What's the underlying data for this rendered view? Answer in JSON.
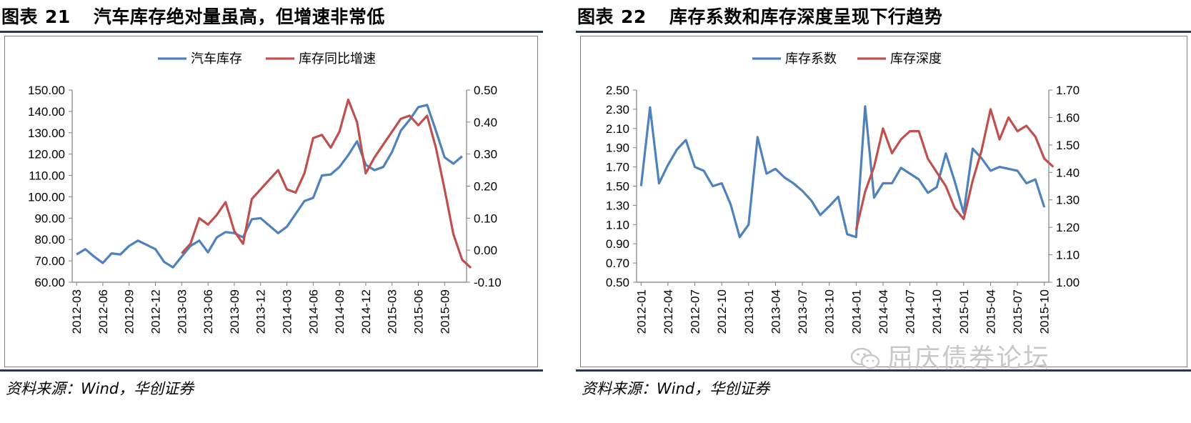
{
  "left_panel": {
    "title_prefix": "图表",
    "title_number": "21",
    "title_text": "汽车库存绝对量虽高，但增速非常低",
    "source": "资料来源：Wind，华创证券"
  },
  "right_panel": {
    "title_prefix": "图表",
    "title_number": "22",
    "title_text": "库存系数和库存深度呈现下行趋势",
    "source": "资料来源：Wind，华创证券"
  },
  "watermark": {
    "text": "屈庆债券论坛",
    "icon": "wechat-icon"
  },
  "colors": {
    "blue": "#4f81bd",
    "red": "#c0504d",
    "rule": "#1f3864"
  },
  "chart_data": [
    {
      "type": "line",
      "legend_position": "top-center",
      "grid": false,
      "x_ticks": [
        "2012-03",
        "2012-06",
        "2012-09",
        "2012-12",
        "2013-03",
        "2013-06",
        "2013-09",
        "2013-12",
        "2014-03",
        "2014-06",
        "2014-09",
        "2014-12",
        "2015-03",
        "2015-06",
        "2015-09"
      ],
      "y_left": {
        "min": 60,
        "max": 150,
        "step": 10,
        "tick_labels": [
          "60.00",
          "70.00",
          "80.00",
          "90.00",
          "100.00",
          "110.00",
          "120.00",
          "130.00",
          "140.00",
          "150.00"
        ]
      },
      "y_right": {
        "min": -0.1,
        "max": 0.5,
        "step": 0.1,
        "tick_labels": [
          "-0.10",
          "0.00",
          "0.10",
          "0.20",
          "0.30",
          "0.40",
          "0.50"
        ]
      },
      "series": [
        {
          "name": "汽车库存",
          "color": "#4f81bd",
          "axis": "left",
          "start_index": 0,
          "values": [
            73,
            75.5,
            72,
            69,
            73.5,
            73,
            77,
            79.5,
            77.5,
            75.5,
            69.5,
            67,
            72,
            77,
            79.5,
            74,
            81,
            83.5,
            83,
            81,
            89.5,
            90,
            86.5,
            83,
            86,
            92,
            98,
            99.5,
            110,
            110.5,
            114,
            119.5,
            126,
            115,
            112.5,
            114,
            121,
            131,
            136,
            142,
            143,
            131,
            118.5,
            115.5,
            119
          ]
        },
        {
          "name": "库存同比增速",
          "color": "#c0504d",
          "axis": "right",
          "start_index": 12,
          "values": [
            -0.01,
            0.02,
            0.1,
            0.08,
            0.11,
            0.15,
            0.06,
            0.02,
            0.16,
            0.19,
            0.22,
            0.25,
            0.19,
            0.18,
            0.24,
            0.35,
            0.36,
            0.32,
            0.37,
            0.47,
            0.4,
            0.24,
            0.29,
            0.33,
            0.37,
            0.41,
            0.42,
            0.39,
            0.42,
            0.32,
            0.19,
            0.05,
            -0.03,
            -0.055
          ]
        }
      ]
    },
    {
      "type": "line",
      "legend_position": "top-center",
      "grid": false,
      "x_ticks": [
        "2012-01",
        "2012-04",
        "2012-07",
        "2012-10",
        "2013-01",
        "2013-04",
        "2013-07",
        "2013-10",
        "2014-01",
        "2014-04",
        "2014-07",
        "2014-10",
        "2015-01",
        "2015-04",
        "2015-07",
        "2015-10"
      ],
      "y_left": {
        "min": 0.5,
        "max": 2.5,
        "step": 0.2,
        "tick_labels": [
          "0.50",
          "0.70",
          "0.90",
          "1.10",
          "1.30",
          "1.50",
          "1.70",
          "1.90",
          "2.10",
          "2.30",
          "2.50"
        ]
      },
      "y_right": {
        "min": 1.0,
        "max": 1.7,
        "step": 0.1,
        "tick_labels": [
          "1.00",
          "1.10",
          "1.20",
          "1.30",
          "1.40",
          "1.50",
          "1.60",
          "1.70"
        ]
      },
      "series": [
        {
          "name": "库存系数",
          "color": "#4f81bd",
          "axis": "left",
          "start_index": 0,
          "values": [
            1.5,
            2.32,
            1.53,
            1.72,
            1.88,
            1.98,
            1.7,
            1.66,
            1.5,
            1.53,
            1.31,
            0.97,
            1.1,
            2.01,
            1.63,
            1.68,
            1.59,
            1.53,
            1.45,
            1.35,
            1.2,
            1.29,
            1.39,
            1.0,
            0.97,
            2.33,
            1.38,
            1.53,
            1.53,
            1.69,
            1.63,
            1.57,
            1.43,
            1.49,
            1.84,
            1.55,
            1.22,
            1.89,
            1.79,
            1.66,
            1.7,
            1.68,
            1.66,
            1.53,
            1.57,
            1.28
          ]
        },
        {
          "name": "库存深度",
          "color": "#c0504d",
          "axis": "right",
          "start_index": 24,
          "values": [
            1.19,
            1.33,
            1.42,
            1.56,
            1.47,
            1.52,
            1.55,
            1.55,
            1.45,
            1.4,
            1.35,
            1.27,
            1.23,
            1.37,
            1.48,
            1.63,
            1.52,
            1.6,
            1.55,
            1.57,
            1.53,
            1.45,
            1.42
          ]
        }
      ]
    }
  ]
}
